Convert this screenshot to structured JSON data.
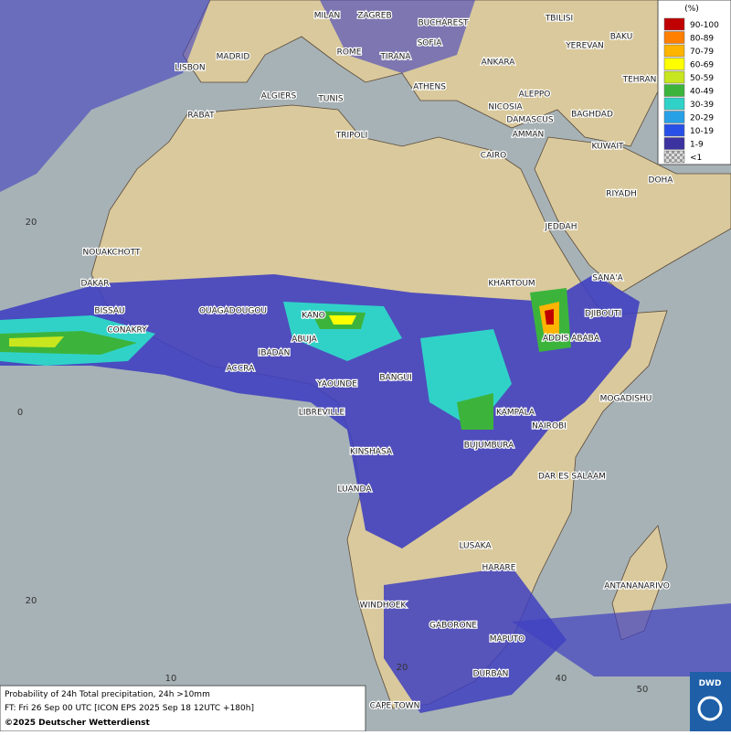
{
  "cities": [
    "MILAN",
    "ZAGREB",
    "BUCHAREST",
    "TBILISI",
    "BAKU",
    "LISBON",
    "MADRID",
    "ROME",
    "SOFIA",
    "TIRANA",
    "ANKARA",
    "YEREVAN",
    "TEHRAN",
    "ALGIERS",
    "TUNIS",
    "ATHENS",
    "ALEPPO",
    "RABAT",
    "NICOSIA",
    "BAGHDAD",
    "DAMASCUS",
    "AMMAN",
    "TRIPOLI",
    "KUWAIT",
    "CAIRO",
    "DOHA",
    "RIYADH",
    "JEDDAH",
    "NOUAKCHOTT",
    "KHARTOUM",
    "SANA'A",
    "DAKAR",
    "BISSAU",
    "OUAGADOUGOU",
    "KANO",
    "DJIBOUTI",
    "CONAKRY",
    "ABUJA",
    "ADDIS ABABA",
    "IBADAN",
    "ACCRA",
    "BANGUI",
    "YAOUNDE",
    "MOGADISHU",
    "LIBREVILLE",
    "KAMPALA",
    "NAIROBI",
    "BUJUMBURA",
    "KINSHASA",
    "DAR ES SALAAM",
    "LUANDA",
    "LUSAKA",
    "HARARE",
    "ANTANANARIVO",
    "WINDHOEK",
    "GABORONE",
    "MAPUTO",
    "DURBAN",
    "CAPE TOWN"
  ],
  "grid_labels": [
    20,
    0,
    20,
    10,
    20,
    40,
    50
  ],
  "legend": {
    "title": "(%)",
    "entries": [
      {
        "label": "90-100",
        "color": "#c00000"
      },
      {
        "label": "80-89",
        "color": "#ff7f00"
      },
      {
        "label": "70-79",
        "color": "#ffb400"
      },
      {
        "label": "60-69",
        "color": "#ffff00"
      },
      {
        "label": "50-59",
        "color": "#c8e61e"
      },
      {
        "label": "40-49",
        "color": "#3cb43c"
      },
      {
        "label": "30-39",
        "color": "#30d2c8"
      },
      {
        "label": "20-29",
        "color": "#28a0e6"
      },
      {
        "label": "10-19",
        "color": "#2850e6"
      },
      {
        "label": "1-9",
        "color": "#3c32a0"
      },
      {
        "label": "<1",
        "color": "checker"
      }
    ]
  },
  "info": {
    "line1": "Probability of 24h Total precipitation, 24h >10mm",
    "line2": "FT: Fri 26 Sep 00 UTC [ICON EPS 2025 Sep 18 12UTC +180h]",
    "copyright": "©2025 Deutscher Wetterdienst"
  },
  "logo": "DWD"
}
